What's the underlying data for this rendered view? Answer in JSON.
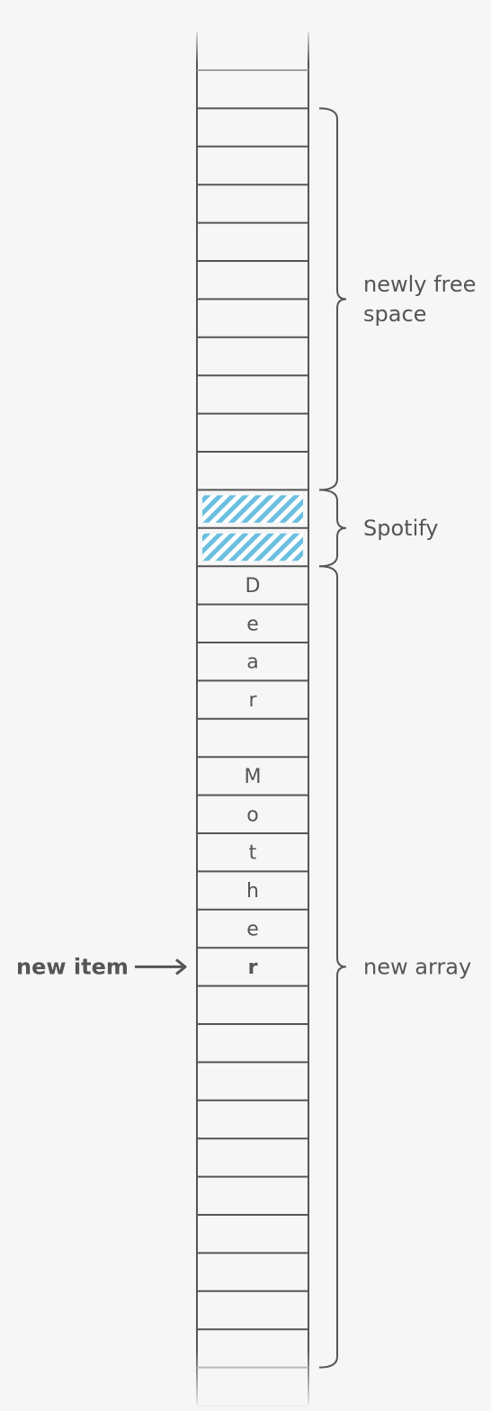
{
  "memory": {
    "cell_letters": [
      "",
      "",
      "",
      "",
      "",
      "",
      "",
      "",
      "",
      "",
      "",
      "",
      "",
      "D",
      "e",
      "a",
      "r",
      "",
      "M",
      "o",
      "t",
      "h",
      "e",
      "r",
      "",
      "",
      "",
      "",
      "",
      "",
      "",
      "",
      "",
      ""
    ],
    "hatched_cells": [
      11,
      12
    ],
    "new_item_cell": 23,
    "hatch_color": "#6bbfe0"
  },
  "braces": [
    {
      "label": [
        "newly free",
        "space"
      ],
      "from_cell": 1,
      "to_cell": 10
    },
    {
      "label": [
        "Spotify"
      ],
      "from_cell": 11,
      "to_cell": 12
    },
    {
      "label": [
        "new array"
      ],
      "from_cell": 13,
      "to_cell": 33
    }
  ],
  "pointer": {
    "label": "new item",
    "cell": 23
  },
  "colors": {
    "line": "#555555",
    "text": "#555555",
    "background": "#f6f6f6"
  }
}
